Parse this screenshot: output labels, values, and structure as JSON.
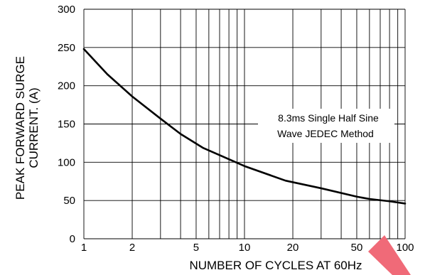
{
  "chart_data": {
    "type": "line",
    "x_scale": "log",
    "x_ticks": [
      1,
      2,
      5,
      10,
      20,
      50,
      100
    ],
    "y_ticks": [
      0,
      50,
      100,
      150,
      200,
      250,
      300
    ],
    "xlim": [
      1,
      100
    ],
    "ylim": [
      0,
      300
    ],
    "grid": true,
    "xlabel": "NUMBER OF CYCLES AT 60Hz",
    "ylabel_lines": [
      "PEAK FORWARD SURGE",
      "CURRENT. (A)"
    ],
    "annotation_lines": [
      "8.3ms Single Half Sine",
      "Wave JEDEC Method"
    ],
    "series": [
      {
        "x": [
          1,
          1.4,
          2,
          3,
          4,
          5.5,
          10,
          18,
          30,
          50,
          60,
          80,
          100
        ],
        "y": [
          248,
          215,
          186,
          157,
          137,
          119,
          95,
          76,
          66,
          55,
          52,
          49,
          46
        ]
      }
    ],
    "colors": {
      "line": "#000000",
      "grid": "#000000",
      "marker": "#f06a78"
    }
  }
}
